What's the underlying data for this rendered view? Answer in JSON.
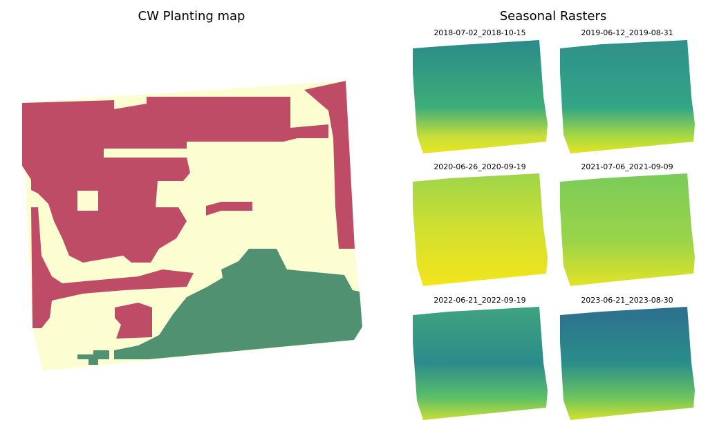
{
  "left_panel": {
    "title": "CW Planting map"
  },
  "right_panel": {
    "title": "Seasonal Rasters",
    "rasters": [
      "2018-07-02_2018-10-15",
      "2019-06-12_2019-08-31",
      "2020-06-26_2020-09-19",
      "2021-07-06_2021-09-09",
      "2022-06-21_2022-09-19",
      "2023-06-21_2023-08-30"
    ]
  }
}
